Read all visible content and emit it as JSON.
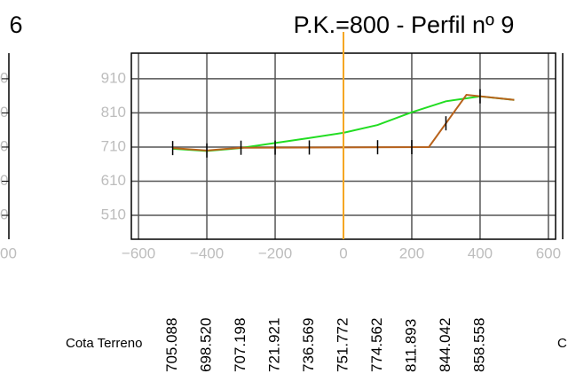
{
  "chart_data": {
    "type": "line",
    "title": "P.K.=800 - Perfil nº 9",
    "xlim": [
      -621,
      621
    ],
    "ylim": [
      440,
      985
    ],
    "xticks": [
      {
        "value": -600,
        "label": "−600"
      },
      {
        "value": -400,
        "label": "−400"
      },
      {
        "value": -200,
        "label": "−200"
      },
      0,
      200,
      400,
      600
    ],
    "yticks": [
      510,
      610,
      710,
      810,
      910
    ],
    "grid": true,
    "series": [
      {
        "name": "Cota Terreno",
        "color": "#22dd22",
        "x": [
          -500,
          -400,
          -300,
          -200,
          -100,
          0,
          100,
          200,
          300,
          400,
          500
        ],
        "values": [
          705.088,
          698.52,
          707.198,
          721.921,
          736.569,
          751.772,
          774.562,
          811.893,
          844.042,
          858.558,
          848
        ],
        "value_labels": [
          "705.088",
          "698.520",
          "707.198",
          "721.921",
          "736.569",
          "751.772",
          "774.562",
          "811.893",
          "844.042",
          "858.558",
          null
        ]
      },
      {
        "color": "#b8621b",
        "x": [
          -500,
          -400,
          -300,
          250,
          360,
          500
        ],
        "values": [
          707,
          700,
          708,
          710,
          863,
          848
        ]
      }
    ],
    "axis_color": "#f5a623"
  },
  "left_panel": {
    "title_fragment": "6",
    "ytick_fragments": [
      "0",
      "0",
      "0",
      "0",
      "0"
    ],
    "xtick_fragment": "00"
  },
  "right_panel": {
    "label_fragment": "C"
  }
}
